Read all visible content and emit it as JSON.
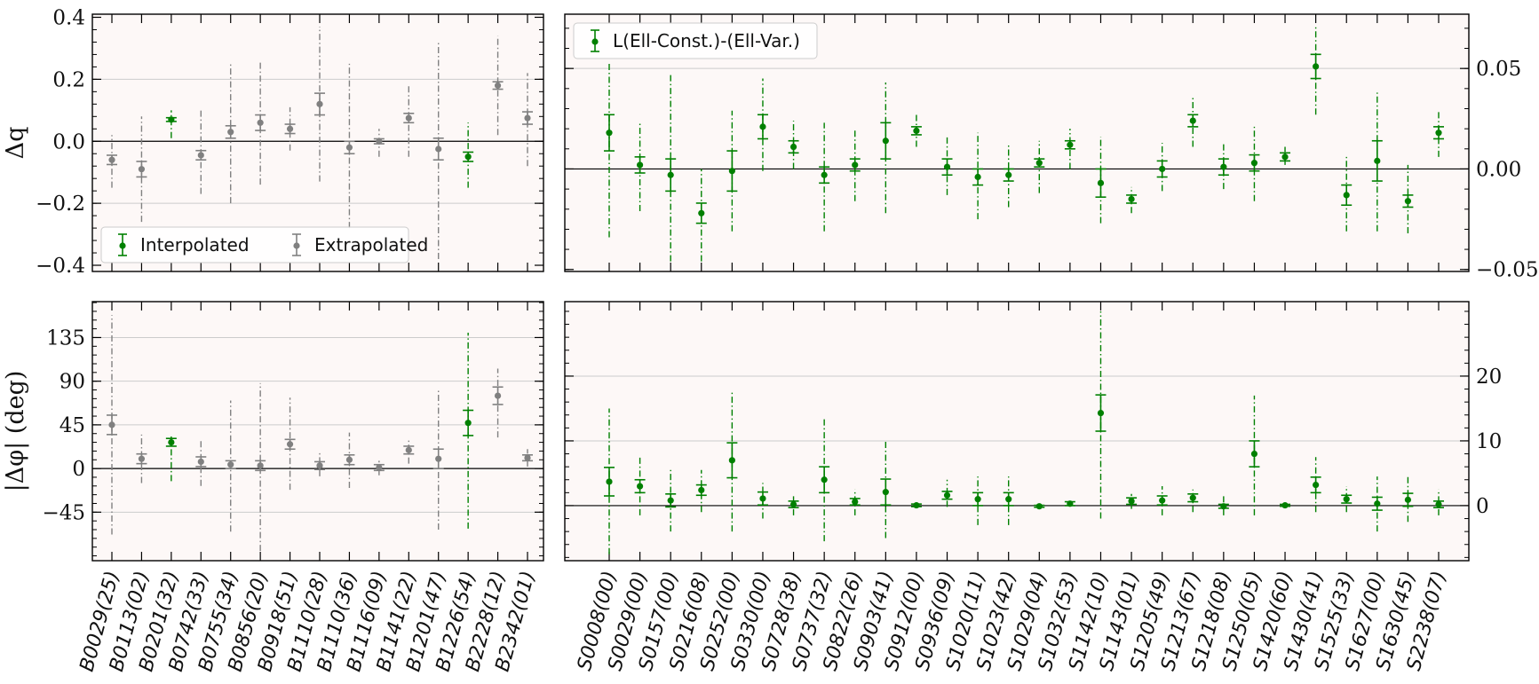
{
  "chart_data": [
    {
      "panel": "top-left",
      "type": "scatter",
      "ylabel": "Δq",
      "ylim": [
        -0.42,
        0.41
      ],
      "yticks": [
        -0.4,
        -0.2,
        0.0,
        0.2,
        0.4
      ],
      "ytick_labels": [
        "−0.4",
        "−0.2",
        "0.0",
        "0.2",
        "0.4"
      ],
      "y_axis_side": "left",
      "gridlines": [
        -0.2,
        0.2
      ],
      "zero_line": true,
      "legend": {
        "placement": "bottom-left",
        "entries": [
          {
            "label": "Interpolated",
            "color": "#008000"
          },
          {
            "label": "Extrapolated",
            "color": "#808080"
          }
        ]
      },
      "categories": [
        "B0029(25)",
        "B0113(02)",
        "B0201(32)",
        "B0742(33)",
        "B0755(34)",
        "B0856(20)",
        "B0918(51)",
        "B1110(28)",
        "B1110(36)",
        "B1116(09)",
        "B1141(22)",
        "B1201(47)",
        "B1226(54)",
        "B2228(12)",
        "B2342(01)"
      ],
      "points": [
        {
          "y": -0.06,
          "err": 0.015,
          "lo": -0.15,
          "hi": 0.02,
          "group": "Extrapolated"
        },
        {
          "y": -0.09,
          "err": 0.025,
          "lo": -0.26,
          "hi": 0.08,
          "group": "Extrapolated"
        },
        {
          "y": 0.07,
          "err": 0.006,
          "lo": 0.01,
          "hi": 0.1,
          "group": "Interpolated"
        },
        {
          "y": -0.045,
          "err": 0.015,
          "lo": -0.17,
          "hi": 0.1,
          "group": "Extrapolated"
        },
        {
          "y": 0.03,
          "err": 0.02,
          "lo": -0.2,
          "hi": 0.25,
          "group": "Extrapolated"
        },
        {
          "y": 0.06,
          "err": 0.025,
          "lo": -0.14,
          "hi": 0.26,
          "group": "Extrapolated"
        },
        {
          "y": 0.04,
          "err": 0.015,
          "lo": -0.03,
          "hi": 0.11,
          "group": "Extrapolated"
        },
        {
          "y": 0.12,
          "err": 0.035,
          "lo": -0.13,
          "hi": 0.37,
          "group": "Extrapolated"
        },
        {
          "y": -0.02,
          "err": 0.02,
          "lo": -0.28,
          "hi": 0.25,
          "group": "Extrapolated"
        },
        {
          "y": 0.0,
          "err": 0.008,
          "lo": -0.05,
          "hi": 0.04,
          "group": "Extrapolated"
        },
        {
          "y": 0.075,
          "err": 0.015,
          "lo": -0.05,
          "hi": 0.18,
          "group": "Extrapolated"
        },
        {
          "y": -0.025,
          "err": 0.035,
          "lo": -0.38,
          "hi": 0.32,
          "group": "Extrapolated"
        },
        {
          "y": -0.05,
          "err": 0.015,
          "lo": -0.15,
          "hi": 0.06,
          "group": "Interpolated"
        },
        {
          "y": 0.18,
          "err": 0.012,
          "lo": 0.02,
          "hi": 0.34,
          "group": "Extrapolated"
        },
        {
          "y": 0.075,
          "err": 0.02,
          "lo": -0.08,
          "hi": 0.22,
          "group": "Extrapolated"
        }
      ]
    },
    {
      "panel": "top-right",
      "type": "scatter",
      "ylim": [
        -0.051,
        0.077
      ],
      "yticks": [
        -0.05,
        0.0,
        0.05
      ],
      "ytick_labels": [
        "−0.05",
        "0.00",
        "0.05"
      ],
      "y_axis_side": "right",
      "gridlines": [
        0.05
      ],
      "zero_line": true,
      "legend": {
        "placement": "top-left",
        "entries": [
          {
            "label": "L(Ell-Const.)-(Ell-Var.)",
            "color": "#008000"
          }
        ]
      },
      "categories": [
        "S0008(00)",
        "S0029(00)",
        "S0157(00)",
        "S0216(08)",
        "S0252(00)",
        "S0330(00)",
        "S0728(38)",
        "S0737(32)",
        "S0822(26)",
        "S0903(41)",
        "S0912(00)",
        "S0936(09)",
        "S1020(11)",
        "S1023(42)",
        "S1029(04)",
        "S1032(53)",
        "S1142(10)",
        "S1143(01)",
        "S1205(49)",
        "S1213(67)",
        "S1218(08)",
        "S1250(05)",
        "S1420(60)",
        "S1430(41)",
        "S1525(33)",
        "S1627(00)",
        "S1630(45)",
        "S2238(07)"
      ],
      "points": [
        {
          "y": 0.018,
          "err": 0.009,
          "lo": -0.034,
          "hi": 0.053
        },
        {
          "y": 0.002,
          "err": 0.004,
          "lo": -0.021,
          "hi": 0.023
        },
        {
          "y": -0.003,
          "err": 0.008,
          "lo": -0.046,
          "hi": 0.047
        },
        {
          "y": -0.022,
          "err": 0.005,
          "lo": -0.046,
          "hi": 0.0
        },
        {
          "y": -0.001,
          "err": 0.01,
          "lo": -0.031,
          "hi": 0.029
        },
        {
          "y": 0.021,
          "err": 0.006,
          "lo": -0.001,
          "hi": 0.045
        },
        {
          "y": 0.011,
          "err": 0.003,
          "lo": 0.0,
          "hi": 0.024
        },
        {
          "y": -0.003,
          "err": 0.004,
          "lo": -0.031,
          "hi": 0.023
        },
        {
          "y": 0.002,
          "err": 0.003,
          "lo": -0.016,
          "hi": 0.02
        },
        {
          "y": 0.014,
          "err": 0.009,
          "lo": -0.022,
          "hi": 0.043
        },
        {
          "y": 0.019,
          "err": 0.002,
          "lo": 0.011,
          "hi": 0.027
        },
        {
          "y": 0.001,
          "err": 0.004,
          "lo": -0.013,
          "hi": 0.016
        },
        {
          "y": -0.004,
          "err": 0.004,
          "lo": -0.025,
          "hi": 0.018
        },
        {
          "y": -0.003,
          "err": 0.003,
          "lo": -0.019,
          "hi": 0.013
        },
        {
          "y": 0.003,
          "err": 0.002,
          "lo": -0.012,
          "hi": 0.014
        },
        {
          "y": 0.012,
          "err": 0.002,
          "lo": 0.0,
          "hi": 0.02
        },
        {
          "y": -0.007,
          "err": 0.007,
          "lo": -0.027,
          "hi": 0.016
        },
        {
          "y": -0.015,
          "err": 0.002,
          "lo": -0.022,
          "hi": -0.009
        },
        {
          "y": 0.0,
          "err": 0.004,
          "lo": -0.011,
          "hi": 0.013
        },
        {
          "y": 0.024,
          "err": 0.003,
          "lo": 0.011,
          "hi": 0.036
        },
        {
          "y": 0.001,
          "err": 0.004,
          "lo": -0.01,
          "hi": 0.013
        },
        {
          "y": 0.003,
          "err": 0.004,
          "lo": -0.016,
          "hi": 0.021
        },
        {
          "y": 0.006,
          "err": 0.002,
          "lo": 0.002,
          "hi": 0.011
        },
        {
          "y": 0.051,
          "err": 0.006,
          "lo": 0.027,
          "hi": 0.071
        },
        {
          "y": -0.013,
          "err": 0.005,
          "lo": -0.031,
          "hi": 0.006
        },
        {
          "y": 0.004,
          "err": 0.01,
          "lo": -0.031,
          "hi": 0.038
        },
        {
          "y": -0.016,
          "err": 0.003,
          "lo": -0.032,
          "hi": 0.002
        },
        {
          "y": 0.018,
          "err": 0.003,
          "lo": 0.006,
          "hi": 0.029
        }
      ]
    },
    {
      "panel": "bottom-left",
      "type": "scatter",
      "ylabel": "|Δφ| (deg)",
      "ylim": [
        -95,
        172
      ],
      "yticks": [
        -45,
        0,
        45,
        90,
        135
      ],
      "ytick_labels": [
        "−45",
        "0",
        "45",
        "90",
        "135"
      ],
      "y_axis_side": "left",
      "gridlines": [
        -45,
        45,
        90,
        135
      ],
      "zero_line": true,
      "categories": [
        "B0029(25)",
        "B0113(02)",
        "B0201(32)",
        "B0742(33)",
        "B0755(34)",
        "B0856(20)",
        "B0918(51)",
        "B1110(28)",
        "B1110(36)",
        "B1116(09)",
        "B1141(22)",
        "B1201(47)",
        "B1226(54)",
        "B2228(12)",
        "B2342(01)"
      ],
      "points": [
        {
          "y": 45,
          "err": 10,
          "lo": -68,
          "hi": 158,
          "group": "Extrapolated"
        },
        {
          "y": 10,
          "err": 5,
          "lo": -15,
          "hi": 35,
          "group": "Extrapolated"
        },
        {
          "y": 27,
          "err": 4,
          "lo": -13,
          "hi": 33,
          "group": "Interpolated"
        },
        {
          "y": 7,
          "err": 5,
          "lo": -18,
          "hi": 30,
          "group": "Extrapolated"
        },
        {
          "y": 4,
          "err": 4,
          "lo": -65,
          "hi": 70,
          "group": "Extrapolated"
        },
        {
          "y": 3,
          "err": 5,
          "lo": -85,
          "hi": 88,
          "group": "Extrapolated"
        },
        {
          "y": 25,
          "err": 5,
          "lo": -22,
          "hi": 73,
          "group": "Extrapolated"
        },
        {
          "y": 3,
          "err": 4,
          "lo": -8,
          "hi": 17,
          "group": "Extrapolated"
        },
        {
          "y": 9,
          "err": 5,
          "lo": -20,
          "hi": 37,
          "group": "Extrapolated"
        },
        {
          "y": 1,
          "err": 3,
          "lo": -7,
          "hi": 8,
          "group": "Extrapolated"
        },
        {
          "y": 19,
          "err": 4,
          "lo": 5,
          "hi": 30,
          "group": "Extrapolated"
        },
        {
          "y": 10,
          "err": 10,
          "lo": -63,
          "hi": 81,
          "group": "Extrapolated"
        },
        {
          "y": 47,
          "err": 13,
          "lo": -62,
          "hi": 140,
          "group": "Interpolated"
        },
        {
          "y": 75,
          "err": 9,
          "lo": 32,
          "hi": 103,
          "group": "Extrapolated"
        },
        {
          "y": 11,
          "err": 3,
          "lo": 2,
          "hi": 20,
          "group": "Extrapolated"
        }
      ]
    },
    {
      "panel": "bottom-right",
      "type": "scatter",
      "ylim": [
        -8.5,
        31.5
      ],
      "yticks": [
        0,
        10,
        20
      ],
      "ytick_labels": [
        "0",
        "10",
        "20"
      ],
      "y_axis_side": "right",
      "gridlines": [
        10,
        20
      ],
      "zero_line": true,
      "categories": [
        "S0008(00)",
        "S0029(00)",
        "S0157(00)",
        "S0216(08)",
        "S0252(00)",
        "S0330(00)",
        "S0728(38)",
        "S0737(32)",
        "S0822(26)",
        "S0903(41)",
        "S0912(00)",
        "S0936(09)",
        "S1020(11)",
        "S1023(42)",
        "S1029(04)",
        "S1032(53)",
        "S1142(10)",
        "S1143(01)",
        "S1205(49)",
        "S1213(67)",
        "S1218(08)",
        "S1250(05)",
        "S1420(60)",
        "S1430(41)",
        "S1525(33)",
        "S1627(00)",
        "S1630(45)",
        "S2238(07)"
      ],
      "points": [
        {
          "y": 3.7,
          "err": 2.2,
          "lo": -7.5,
          "hi": 15.0
        },
        {
          "y": 3.0,
          "err": 1.0,
          "lo": -1.5,
          "hi": 7.5
        },
        {
          "y": 0.8,
          "err": 1.0,
          "lo": -4.0,
          "hi": 5.5
        },
        {
          "y": 2.4,
          "err": 0.8,
          "lo": -1.0,
          "hi": 5.5
        },
        {
          "y": 7.0,
          "err": 2.7,
          "lo": -4.0,
          "hi": 17.5
        },
        {
          "y": 1.1,
          "err": 1.0,
          "lo": -2.0,
          "hi": 3.5
        },
        {
          "y": 0.2,
          "err": 0.5,
          "lo": -1.5,
          "hi": 1.8
        },
        {
          "y": 4.0,
          "err": 2.0,
          "lo": -5.5,
          "hi": 13.5
        },
        {
          "y": 0.6,
          "err": 0.5,
          "lo": -1.5,
          "hi": 2.5
        },
        {
          "y": 2.1,
          "err": 2.0,
          "lo": -5.0,
          "hi": 10.0
        },
        {
          "y": 0.05,
          "err": 0.2,
          "lo": -0.4,
          "hi": 0.5
        },
        {
          "y": 1.6,
          "err": 0.6,
          "lo": -0.2,
          "hi": 4.0
        },
        {
          "y": 1.0,
          "err": 1.0,
          "lo": -3.0,
          "hi": 4.5
        },
        {
          "y": 1.0,
          "err": 1.0,
          "lo": -3.0,
          "hi": 4.5
        },
        {
          "y": -0.1,
          "err": 0.15,
          "lo": -0.3,
          "hi": 0.2
        },
        {
          "y": 0.3,
          "err": 0.3,
          "lo": -0.1,
          "hi": 0.6
        },
        {
          "y": 14.3,
          "err": 2.8,
          "lo": -2.0,
          "hi": 30.0
        },
        {
          "y": 0.7,
          "err": 0.5,
          "lo": -0.5,
          "hi": 1.8
        },
        {
          "y": 0.8,
          "err": 0.7,
          "lo": -1.5,
          "hi": 3.0
        },
        {
          "y": 1.2,
          "err": 0.6,
          "lo": -1.0,
          "hi": 2.5
        },
        {
          "y": -0.1,
          "err": 0.3,
          "lo": -1.5,
          "hi": 1.5
        },
        {
          "y": 8.0,
          "err": 2.0,
          "lo": -1.5,
          "hi": 17.0
        },
        {
          "y": 0.05,
          "err": 0.15,
          "lo": -0.2,
          "hi": 0.2
        },
        {
          "y": 3.2,
          "err": 1.2,
          "lo": -1.0,
          "hi": 7.5
        },
        {
          "y": 1.0,
          "err": 0.6,
          "lo": -1.0,
          "hi": 3.0
        },
        {
          "y": 0.3,
          "err": 1.0,
          "lo": -4.0,
          "hi": 4.5
        },
        {
          "y": 0.9,
          "err": 1.0,
          "lo": -2.5,
          "hi": 4.5
        },
        {
          "y": 0.2,
          "err": 0.5,
          "lo": -1.5,
          "hi": 2.5
        }
      ]
    }
  ],
  "colors": {
    "interpolated": "#008000",
    "extrapolated": "#808080",
    "panel_bg": "#fdf8f7",
    "grid": "#cccccc",
    "zero_line": "#000000"
  }
}
